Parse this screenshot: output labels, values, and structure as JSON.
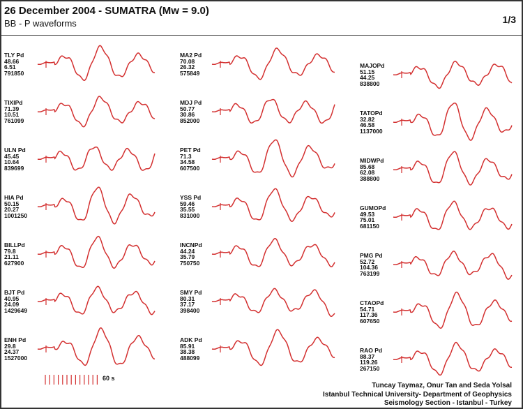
{
  "header": {
    "title": "26 December 2004 - SUMATRA (Mw = 9.0)",
    "subtitle": "BB - P waveforms",
    "page": "1/3"
  },
  "trace_color": "#d32f2f",
  "columns": [
    [
      {
        "name": "TLY Pd",
        "v1": "48.66",
        "v2": "6.51",
        "v3": "791850"
      },
      {
        "name": "TIXIPd",
        "v1": "71.39",
        "v2": "10.51",
        "v3": "761099"
      },
      {
        "name": "ULN Pd",
        "v1": "45.45",
        "v2": "10.64",
        "v3": "839699"
      },
      {
        "name": "HIA Pd",
        "v1": "50.15",
        "v2": "20.27",
        "v3": "1001250"
      },
      {
        "name": "BILLPd",
        "v1": "79.8",
        "v2": "21.11",
        "v3": "627900"
      },
      {
        "name": "BJT Pd",
        "v1": "40.95",
        "v2": "24.09",
        "v3": "1429649"
      },
      {
        "name": "ENH Pd",
        "v1": "29.8",
        "v2": "24.37",
        "v3": "1527000"
      }
    ],
    [
      {
        "name": "MA2 Pd",
        "v1": "70.08",
        "v2": "26.32",
        "v3": "575849"
      },
      {
        "name": "MDJ Pd",
        "v1": "50.77",
        "v2": "30.86",
        "v3": "852000"
      },
      {
        "name": "PET Pd",
        "v1": "71.3",
        "v2": "34.58",
        "v3": "607500"
      },
      {
        "name": "YSS Pd",
        "v1": "59.46",
        "v2": "35.55",
        "v3": "831000"
      },
      {
        "name": "INCNPd",
        "v1": "44.24",
        "v2": "35.79",
        "v3": "750750"
      },
      {
        "name": "SMY Pd",
        "v1": "80.31",
        "v2": "37.17",
        "v3": "398400"
      },
      {
        "name": "ADK Pd",
        "v1": "85.91",
        "v2": "38.38",
        "v3": "488099"
      }
    ],
    [
      {
        "name": "MAJOPd",
        "v1": "51.15",
        "v2": "44.25",
        "v3": "838800"
      },
      {
        "name": "TATOPd",
        "v1": "32.82",
        "v2": "46.58",
        "v3": "1137000"
      },
      {
        "name": "MIDWPd",
        "v1": "85.68",
        "v2": "62.08",
        "v3": "388800"
      },
      {
        "name": "GUMOPd",
        "v1": "49.53",
        "v2": "75.01",
        "v3": "681150"
      },
      {
        "name": "PMG Pd",
        "v1": "52.72",
        "v2": "104.36",
        "v3": "763199"
      },
      {
        "name": "CTAOPd",
        "v1": "54.71",
        "v2": "117.36",
        "v3": "607650"
      },
      {
        "name": "RAO Pd",
        "v1": "88.37",
        "v2": "119.26",
        "v3": "267150"
      }
    ]
  ],
  "scale": {
    "label": "60 s",
    "ticks": 13
  },
  "credits": [
    "Tuncay Taymaz, Onur Tan and Seda Yolsal",
    "Istanbul Technical University- Department of Geophysics",
    "Seismology Section - Istanbul - Turkey"
  ]
}
